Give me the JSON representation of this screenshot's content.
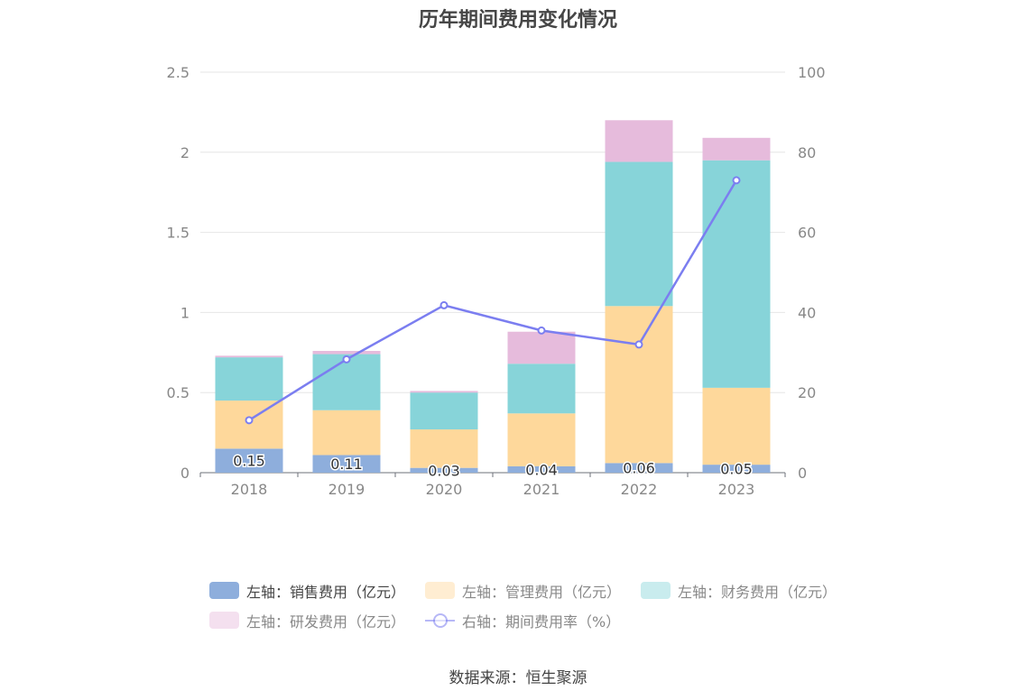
{
  "chart_data": {
    "type": "bar",
    "title": "历年期间费用变化情况",
    "categories": [
      "2018",
      "2019",
      "2020",
      "2021",
      "2022",
      "2023"
    ],
    "series": [
      {
        "name": "左轴：销售费用（亿元）",
        "type": "bar",
        "axis": "left",
        "color": "#8eaedc",
        "values": [
          0.15,
          0.11,
          0.03,
          0.04,
          0.06,
          0.05
        ],
        "value_labels": [
          "0.15",
          "0.11",
          "0.03",
          "0.04",
          "0.06",
          "0.05"
        ]
      },
      {
        "name": "左轴：管理费用（亿元）",
        "type": "bar",
        "axis": "left",
        "color": "#fed89b",
        "values": [
          0.3,
          0.28,
          0.24,
          0.33,
          0.98,
          0.48
        ]
      },
      {
        "name": "左轴：财务费用（亿元）",
        "type": "bar",
        "axis": "left",
        "color": "#87d4d9",
        "values": [
          0.27,
          0.35,
          0.23,
          0.31,
          0.9,
          1.42
        ]
      },
      {
        "name": "左轴：研发费用（亿元）",
        "type": "bar",
        "axis": "left",
        "color": "#e6bbdc",
        "values": [
          0.01,
          0.02,
          0.01,
          0.2,
          0.26,
          0.14
        ]
      },
      {
        "name": "右轴：期间费用率（%）",
        "type": "line",
        "axis": "right",
        "color": "#7b7ef0",
        "values": [
          13.1,
          28.3,
          41.8,
          35.5,
          32.0,
          73.0
        ]
      }
    ],
    "y_left": {
      "ylim": [
        0,
        2.5
      ],
      "ticks": [
        "0",
        "0.5",
        "1",
        "1.5",
        "2",
        "2.5"
      ]
    },
    "y_right": {
      "ylim": [
        0,
        100
      ],
      "ticks": [
        "0",
        "20",
        "40",
        "60",
        "80",
        "100"
      ]
    },
    "grid": true,
    "legend_position": "bottom"
  },
  "source": "数据来源：恒生聚源"
}
